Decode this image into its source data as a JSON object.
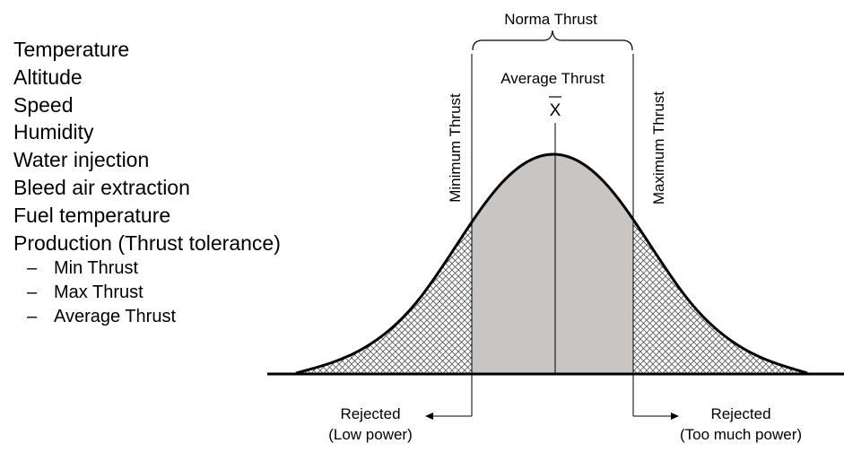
{
  "factors": [
    "Temperature",
    "Altitude",
    "Speed",
    "Humidity",
    "Water injection",
    "Bleed air extraction",
    "Fuel temperature",
    "Production (Thrust tolerance)"
  ],
  "sub_factors": [
    {
      "bullet": "–",
      "label": "Min Thrust"
    },
    {
      "bullet": "–",
      "label": "Max Thrust"
    },
    {
      "bullet": "–",
      "label": "Average Thrust"
    }
  ],
  "diagram": {
    "bracket_label": "Norma Thrust",
    "center_label": "Average Thrust",
    "mean_symbol": "X",
    "left_limit_label": "Minimum Thrust",
    "right_limit_label": "Maximum Thrust",
    "left_reject_line1": "Rejected",
    "left_reject_line2": "(Low power)",
    "right_reject_line1": "Rejected",
    "right_reject_line2": "(Too much power)",
    "colors": {
      "accepted_fill": "#c8c5c3",
      "hatch_line": "#555555",
      "curve": "#000000"
    }
  }
}
